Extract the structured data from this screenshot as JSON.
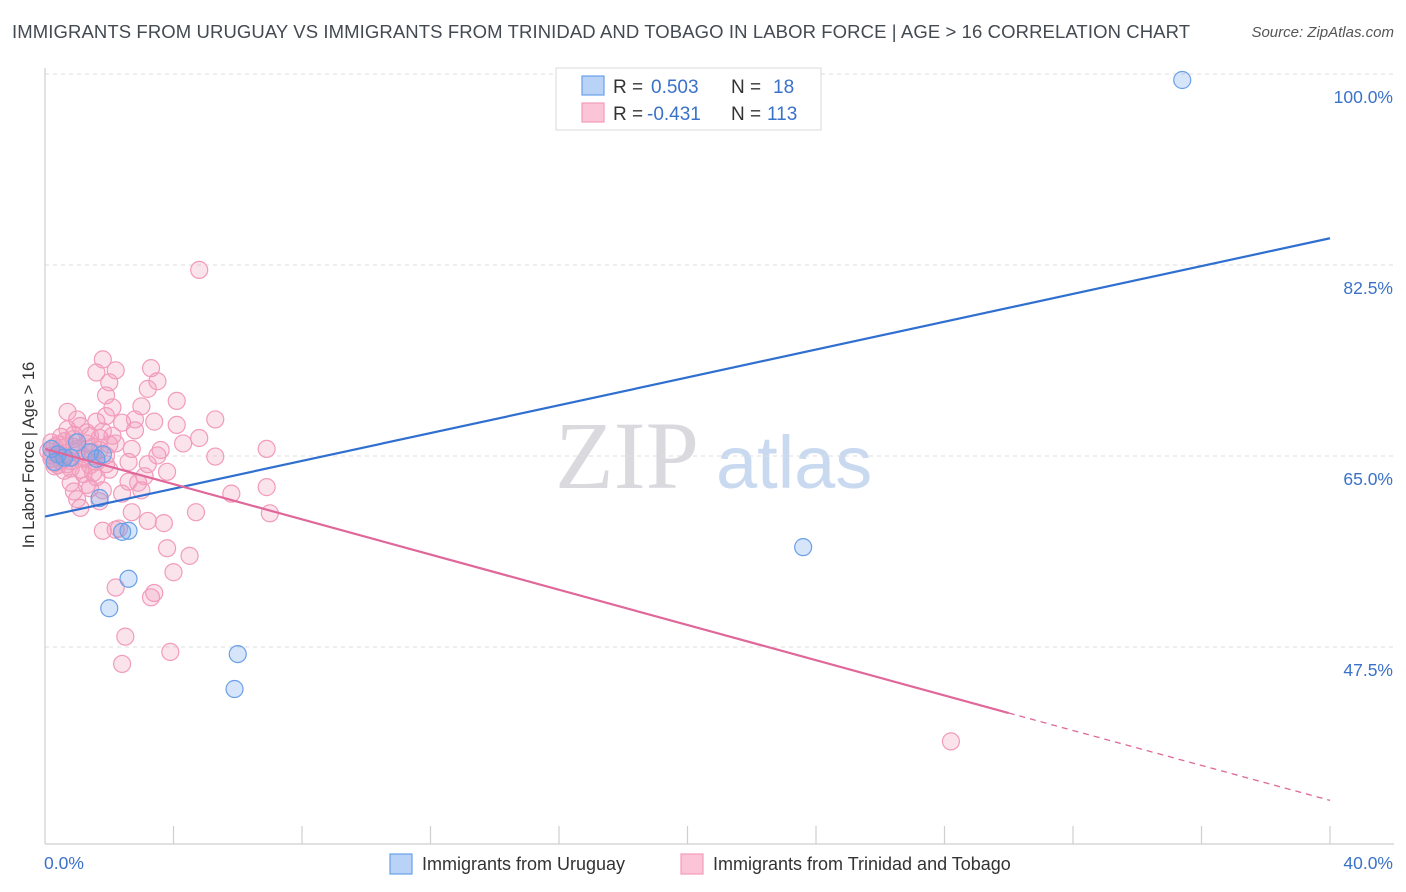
{
  "title": "IMMIGRANTS FROM URUGUAY VS IMMIGRANTS FROM TRINIDAD AND TOBAGO IN LABOR FORCE | AGE > 16 CORRELATION CHART",
  "source": "Source: ZipAtlas.com",
  "watermark": {
    "zip": "ZIP",
    "atlas": "atlas"
  },
  "legend": {
    "r_label": "R =",
    "n_label": "N =",
    "entries": [
      {
        "r": "0.503",
        "n": "18"
      },
      {
        "r": "-0.431",
        "n": "113"
      }
    ]
  },
  "bottom_legend": [
    "Immigrants from Uruguay",
    "Immigrants from Trinidad and Tobago"
  ],
  "chart_data": {
    "type": "scatter",
    "title": "IMMIGRANTS FROM URUGUAY VS IMMIGRANTS FROM TRINIDAD AND TOBAGO IN LABOR FORCE | AGE > 16 CORRELATION CHART",
    "xlabel": "",
    "ylabel": "In Labor Force | Age > 16",
    "xlim": [
      0,
      40
    ],
    "ylim": [
      35,
      101.5
    ],
    "x_tick_labels": [
      "0.0%",
      "40.0%"
    ],
    "y_ticks": [
      47.5,
      65.0,
      82.5,
      100.0
    ],
    "y_tick_labels": [
      "47.5%",
      "65.0%",
      "82.5%",
      "100.0%"
    ],
    "grid": true,
    "legend_position": "top-center",
    "colors": {
      "uruguay": "#6aa0e8",
      "uruguay_line": "#2f6fd0",
      "trinidad": "#f29bbb",
      "trinidad_line": "#e0679a"
    },
    "series": [
      {
        "name": "Immigrants from Uruguay",
        "r": 0.503,
        "n": 18,
        "points": [
          [
            0.2,
            66.2
          ],
          [
            0.4,
            65.7
          ],
          [
            0.6,
            65.4
          ],
          [
            0.3,
            65.0
          ],
          [
            1.0,
            66.8
          ],
          [
            1.4,
            65.9
          ],
          [
            1.6,
            65.3
          ],
          [
            1.8,
            65.7
          ],
          [
            0.8,
            65.4
          ],
          [
            1.7,
            61.7
          ],
          [
            2.4,
            58.6
          ],
          [
            2.6,
            58.7
          ],
          [
            2.6,
            54.3
          ],
          [
            2.0,
            51.6
          ],
          [
            6.0,
            47.4
          ],
          [
            5.9,
            44.2
          ],
          [
            23.6,
            57.2
          ],
          [
            35.4,
            100.0
          ]
        ],
        "trend": {
          "x0": 0,
          "y0": 60.0,
          "x1": 40,
          "y1": 85.5
        }
      },
      {
        "name": "Immigrants from Trinidad and Tobago",
        "r": -0.431,
        "n": 113,
        "points": [
          [
            0.1,
            66.0
          ],
          [
            0.2,
            65.3
          ],
          [
            0.3,
            64.9
          ],
          [
            0.4,
            65.8
          ],
          [
            0.5,
            66.3
          ],
          [
            0.2,
            66.8
          ],
          [
            0.3,
            64.6
          ],
          [
            0.6,
            65.6
          ],
          [
            0.7,
            64.8
          ],
          [
            0.8,
            65.1
          ],
          [
            0.9,
            66.4
          ],
          [
            1.0,
            65.9
          ],
          [
            1.1,
            64.3
          ],
          [
            1.2,
            65.5
          ],
          [
            1.3,
            66.7
          ],
          [
            1.4,
            67.4
          ],
          [
            1.5,
            64.0
          ],
          [
            1.6,
            65.0
          ],
          [
            1.7,
            66.1
          ],
          [
            1.8,
            67.8
          ],
          [
            1.9,
            64.8
          ],
          [
            2.0,
            66.6
          ],
          [
            0.5,
            67.3
          ],
          [
            0.7,
            68.0
          ],
          [
            0.9,
            67.1
          ],
          [
            1.1,
            68.3
          ],
          [
            1.3,
            67.7
          ],
          [
            1.6,
            68.7
          ],
          [
            0.7,
            69.6
          ],
          [
            1.0,
            68.9
          ],
          [
            1.9,
            69.2
          ],
          [
            2.1,
            70.0
          ],
          [
            2.4,
            68.6
          ],
          [
            1.9,
            71.1
          ],
          [
            2.0,
            72.3
          ],
          [
            1.6,
            73.2
          ],
          [
            1.8,
            74.4
          ],
          [
            2.2,
            73.4
          ],
          [
            3.3,
            73.6
          ],
          [
            3.5,
            72.4
          ],
          [
            3.2,
            71.7
          ],
          [
            3.0,
            70.1
          ],
          [
            3.4,
            68.7
          ],
          [
            2.8,
            68.9
          ],
          [
            4.1,
            70.6
          ],
          [
            5.3,
            68.9
          ],
          [
            4.1,
            68.4
          ],
          [
            4.8,
            67.2
          ],
          [
            4.3,
            66.7
          ],
          [
            2.7,
            66.2
          ],
          [
            3.5,
            65.6
          ],
          [
            3.6,
            66.1
          ],
          [
            3.2,
            64.8
          ],
          [
            3.8,
            64.1
          ],
          [
            5.3,
            65.5
          ],
          [
            2.9,
            63.1
          ],
          [
            3.0,
            62.4
          ],
          [
            2.4,
            62.1
          ],
          [
            1.8,
            62.4
          ],
          [
            1.4,
            62.6
          ],
          [
            0.9,
            62.3
          ],
          [
            1.0,
            61.6
          ],
          [
            1.7,
            61.4
          ],
          [
            1.1,
            60.8
          ],
          [
            5.8,
            62.1
          ],
          [
            6.9,
            62.7
          ],
          [
            2.7,
            60.4
          ],
          [
            4.7,
            60.4
          ],
          [
            3.7,
            59.4
          ],
          [
            3.2,
            59.6
          ],
          [
            7.0,
            60.3
          ],
          [
            1.8,
            58.7
          ],
          [
            2.2,
            58.8
          ],
          [
            2.3,
            58.9
          ],
          [
            3.8,
            57.1
          ],
          [
            4.5,
            56.4
          ],
          [
            4.0,
            54.9
          ],
          [
            3.4,
            53.0
          ],
          [
            3.3,
            52.6
          ],
          [
            2.2,
            53.5
          ],
          [
            2.5,
            49.0
          ],
          [
            3.9,
            47.6
          ],
          [
            2.4,
            46.5
          ],
          [
            4.8,
            82.6
          ],
          [
            6.9,
            66.2
          ],
          [
            28.2,
            39.4
          ],
          [
            0.3,
            66.4
          ],
          [
            0.4,
            64.7
          ],
          [
            0.5,
            65.1
          ],
          [
            0.6,
            66.9
          ],
          [
            0.8,
            64.4
          ],
          [
            1.0,
            66.2
          ],
          [
            1.2,
            65.3
          ],
          [
            1.4,
            64.7
          ],
          [
            1.5,
            66.4
          ],
          [
            1.7,
            67.2
          ],
          [
            1.9,
            65.6
          ],
          [
            2.1,
            67.4
          ],
          [
            0.2,
            65.6
          ],
          [
            0.4,
            66.6
          ],
          [
            0.6,
            64.2
          ],
          [
            0.9,
            67.5
          ],
          [
            1.2,
            63.9
          ],
          [
            1.5,
            65.9
          ],
          [
            2.0,
            64.3
          ],
          [
            2.6,
            65.0
          ],
          [
            2.8,
            67.9
          ],
          [
            3.1,
            63.7
          ],
          [
            2.6,
            63.2
          ],
          [
            1.6,
            63.6
          ],
          [
            0.8,
            63.1
          ],
          [
            1.3,
            62.9
          ],
          [
            2.2,
            66.7
          ]
        ],
        "trend": {
          "x0": 0,
          "y0": 66.2,
          "x1": 30,
          "y1": 42.0,
          "dashed_to_x": 40,
          "dashed_to_y": 34.0
        }
      }
    ]
  }
}
